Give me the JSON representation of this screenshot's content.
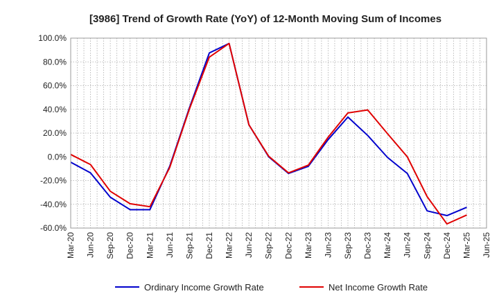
{
  "chart_data": {
    "type": "line",
    "title": "[3986]  Trend of Growth Rate (YoY) of 12-Month Moving Sum of Incomes",
    "xlabel": "",
    "ylabel": "",
    "ylim": [
      -60,
      100
    ],
    "yticks": [
      "100.0%",
      "80.0%",
      "60.0%",
      "40.0%",
      "20.0%",
      "0.0%",
      "-20.0%",
      "-40.0%",
      "-60.0%"
    ],
    "ytick_values": [
      100,
      80,
      60,
      40,
      20,
      0,
      -20,
      -40,
      -60
    ],
    "xticks": [
      "Mar-20",
      "Jun-20",
      "Sep-20",
      "Dec-20",
      "Mar-21",
      "Jun-21",
      "Sep-21",
      "Dec-21",
      "Mar-22",
      "Jun-22",
      "Sep-22",
      "Dec-22",
      "Mar-23",
      "Jun-23",
      "Sep-23",
      "Dec-23",
      "Mar-24",
      "Jun-24",
      "Sep-24",
      "Dec-24",
      "Mar-25",
      "Jun-25"
    ],
    "x": [
      "2020-03",
      "2020-06",
      "2020-09",
      "2020-12",
      "2021-03",
      "2021-06",
      "2021-09",
      "2021-12",
      "2022-03",
      "2022-06",
      "2022-09",
      "2022-12",
      "2023-03",
      "2023-06",
      "2023-09",
      "2023-12",
      "2024-03",
      "2024-06",
      "2024-09",
      "2024-12",
      "2025-03"
    ],
    "grid": true,
    "legend_position": "bottom",
    "series": [
      {
        "name": "Ordinary Income Growth Rate",
        "color": "#0000cc",
        "values": [
          -4.5,
          -13.5,
          -34,
          -44.5,
          -44.5,
          -8,
          41.5,
          87.5,
          95.5,
          27,
          0,
          -14,
          -8,
          14.5,
          33.5,
          18,
          -0.5,
          -14,
          -45.5,
          -49.5,
          -42.5
        ]
      },
      {
        "name": "Net Income Growth Rate",
        "color": "#e00000",
        "values": [
          2,
          -6.5,
          -29,
          -39.5,
          -42,
          -9,
          40.5,
          84,
          95.5,
          27,
          0.5,
          -13.5,
          -7,
          16.5,
          37,
          39.5,
          19.5,
          0,
          -33.5,
          -56.5,
          -49
        ]
      }
    ]
  }
}
